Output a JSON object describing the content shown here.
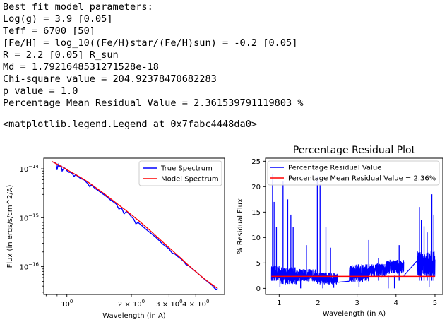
{
  "output": {
    "lines": [
      "Best fit model parameters:",
      "Log(g) = 3.9 [0.05]",
      "Teff = 6700 [50]",
      "[Fe/H] = log_10((Fe/H)star/(Fe/H)sun) = -0.2 [0.05]",
      "R = 2.2 [0.05] R_sun",
      "Md = 1.7921648531271528e-18",
      "Chi-square value = 204.92378470682283",
      "p value = 1.0",
      "Percentage Mean Residual Value = 2.361539791119803 %"
    ],
    "repr": "<matplotlib.legend.Legend at 0x7fabc4448da0>"
  },
  "chart_data": [
    {
      "type": "line",
      "title": "",
      "xlabel": "Wavelength (in A)",
      "ylabel": "Flux (in ergs/s/cm^2/A)",
      "xscale": "log",
      "yscale": "log",
      "xlim": [
        0.78,
        5.45
      ],
      "ylim": [
        2.7e-17,
        1.65e-14
      ],
      "xticks": [
        {
          "value": 1,
          "base": "10",
          "exp": "0"
        },
        {
          "value": 2,
          "base": "2 × 10",
          "exp": "0"
        },
        {
          "value": 3,
          "base": "3 × 10",
          "exp": "0"
        },
        {
          "value": 4,
          "base": "4 × 10",
          "exp": "0"
        }
      ],
      "yticks": [
        {
          "value": 1e-14,
          "base": "10",
          "exp": "−14"
        },
        {
          "value": 1e-15,
          "base": "10",
          "exp": "−15"
        },
        {
          "value": 1e-16,
          "base": "10",
          "exp": "−16"
        }
      ],
      "grid": false,
      "legend_position": "top-right",
      "series": [
        {
          "name": "True Spectrum",
          "color": "#0000ff",
          "x": [
            0.85,
            0.87,
            0.89,
            0.9,
            0.91,
            0.92,
            0.94,
            0.95,
            0.97,
            0.99,
            1.0,
            1.02,
            1.05,
            1.08,
            1.1,
            1.13,
            1.16,
            1.2,
            1.25,
            1.28,
            1.3,
            1.35,
            1.4,
            1.45,
            1.5,
            1.55,
            1.6,
            1.65,
            1.7,
            1.75,
            1.8,
            1.85,
            1.9,
            1.95,
            2.0,
            2.05,
            2.1,
            2.15,
            2.2,
            2.3,
            2.4,
            2.5,
            2.6,
            2.7,
            2.8,
            2.9,
            3.0,
            3.1,
            3.2,
            3.3,
            3.4,
            3.5,
            3.6,
            3.7,
            3.8,
            3.9,
            4.0,
            4.1,
            4.2,
            4.3,
            4.4,
            4.5,
            4.6,
            4.7,
            4.8,
            4.9,
            5.0,
            5.05
          ],
          "y": [
            1.4e-14,
            1.35e-14,
            1.3e-14,
            9.5e-15,
            1.22e-14,
            1.1e-14,
            1.15e-14,
            9e-15,
            1.05e-14,
            1e-14,
            9.2e-15,
            8.5e-15,
            8.4e-15,
            7e-15,
            7.6e-15,
            6.9e-15,
            6.3e-15,
            6e-15,
            5e-15,
            4.3e-15,
            4.7e-15,
            4e-15,
            3.6e-15,
            3.2e-15,
            2.9e-15,
            2.6e-15,
            2.3e-15,
            2.1e-15,
            1.9e-15,
            1.5e-15,
            1.6e-15,
            1.2e-15,
            1.35e-15,
            1.2e-15,
            1.05e-15,
            9.5e-16,
            7.5e-16,
            8e-16,
            7.4e-16,
            6.2e-16,
            5.3e-16,
            4.6e-16,
            4e-16,
            3.4e-16,
            2.9e-16,
            2.6e-16,
            2.3e-16,
            1.9e-16,
            1.8e-16,
            1.6e-16,
            1.45e-16,
            1.3e-16,
            1.1e-16,
            1.05e-16,
            9.5e-17,
            8.7e-17,
            7.9e-17,
            7.2e-17,
            6.6e-17,
            6e-17,
            5.5e-17,
            5.1e-17,
            4.7e-17,
            4.4e-17,
            4e-17,
            3.6e-17,
            3.4e-17,
            3.6e-17
          ]
        },
        {
          "name": "Model Spectrum",
          "color": "#ff0000",
          "x": [
            0.85,
            0.9,
            0.95,
            1.0,
            1.1,
            1.2,
            1.3,
            1.4,
            1.5,
            1.6,
            1.7,
            1.8,
            1.9,
            2.0,
            2.2,
            2.4,
            2.6,
            2.8,
            3.0,
            3.2,
            3.4,
            3.6,
            3.8,
            4.0,
            4.2,
            4.4,
            4.6,
            4.8,
            5.0,
            5.05
          ],
          "y": [
            1.42e-14,
            1.25e-14,
            1.1e-14,
            9.6e-15,
            7.6e-15,
            6.1e-15,
            4.8e-15,
            3.8e-15,
            3.05e-15,
            2.45e-15,
            2e-15,
            1.65e-15,
            1.38e-15,
            1.15e-15,
            8.2e-16,
            5.9e-16,
            4.3e-16,
            3.2e-16,
            2.45e-16,
            1.9e-16,
            1.5e-16,
            1.18e-16,
            9.6e-17,
            7.9e-17,
            6.6e-17,
            5.6e-17,
            4.8e-17,
            4.2e-17,
            3.7e-17,
            3.6e-17
          ]
        }
      ]
    },
    {
      "type": "line",
      "title": "Percentage Residual Plot",
      "xlabel": "Wavelength (in A)",
      "ylabel": "% Residual Flux",
      "xlim": [
        0.65,
        5.2
      ],
      "ylim": [
        -1.2,
        25.6
      ],
      "xticks": [
        1,
        2,
        3,
        4,
        5
      ],
      "yticks": [
        0,
        5,
        10,
        15,
        20,
        25
      ],
      "grid": false,
      "legend_position": "top-left",
      "series": [
        {
          "name": "Percentage Residual Value",
          "color": "#0000ff",
          "segments": [
            {
              "xmin": 0.8,
              "xmax": 1.05,
              "base": 2.5,
              "amp": 3.0
            },
            {
              "xmin": 1.05,
              "xmax": 1.45,
              "base": 2.0,
              "amp": 3.5
            },
            {
              "xmin": 1.45,
              "xmax": 1.95,
              "base": 2.2,
              "amp": 2.5
            },
            {
              "xmin": 1.95,
              "xmax": 2.5,
              "base": 1.6,
              "amp": 2.4
            },
            {
              "xmin": 2.8,
              "xmax": 3.3,
              "base": 2.5,
              "amp": 3.5
            },
            {
              "xmin": 3.3,
              "xmax": 3.75,
              "base": 3.2,
              "amp": 2.5
            },
            {
              "xmin": 3.75,
              "xmax": 4.2,
              "base": 3.8,
              "amp": 2.8
            },
            {
              "xmin": 4.55,
              "xmax": 5.0,
              "base": 4.0,
              "amp": 5.0
            }
          ],
          "spikes": [
            {
              "x": 0.83,
              "y": 22.5
            },
            {
              "x": 0.87,
              "y": 17.0
            },
            {
              "x": 0.93,
              "y": 12.0
            },
            {
              "x": 1.1,
              "y": 21.0
            },
            {
              "x": 1.22,
              "y": 17.5
            },
            {
              "x": 1.3,
              "y": 14.5
            },
            {
              "x": 1.36,
              "y": 12.0
            },
            {
              "x": 1.7,
              "y": 8.5
            },
            {
              "x": 1.98,
              "y": 22.0
            },
            {
              "x": 2.05,
              "y": 20.5
            },
            {
              "x": 2.2,
              "y": 12.0
            },
            {
              "x": 2.32,
              "y": 8.0
            },
            {
              "x": 3.3,
              "y": 9.5
            },
            {
              "x": 3.55,
              "y": 6.0
            },
            {
              "x": 4.08,
              "y": 8.5
            },
            {
              "x": 4.6,
              "y": 16.0
            },
            {
              "x": 4.65,
              "y": 13.5
            },
            {
              "x": 4.72,
              "y": 12.2
            },
            {
              "x": 4.8,
              "y": 11.0
            },
            {
              "x": 4.92,
              "y": 18.5
            },
            {
              "x": 4.97,
              "y": 14.5
            }
          ],
          "dips": [
            {
              "x": 1.02,
              "y": 0.2
            },
            {
              "x": 1.55,
              "y": 0.0
            },
            {
              "x": 2.12,
              "y": 0.0
            },
            {
              "x": 2.4,
              "y": 0.1
            },
            {
              "x": 3.05,
              "y": 0.2
            },
            {
              "x": 3.8,
              "y": 0.0
            },
            {
              "x": 3.96,
              "y": 0.0
            },
            {
              "x": 4.85,
              "y": 0.3
            }
          ],
          "connectors": [
            [
              {
                "x": 2.5,
                "y": 1.2
              },
              {
                "x": 2.8,
                "y": 1.4
              }
            ],
            [
              {
                "x": 4.2,
                "y": 2.5
              },
              {
                "x": 4.55,
                "y": 5.5
              }
            ]
          ]
        },
        {
          "name": "Percentage Mean Residual Value = 2.36%",
          "color": "#ff0000",
          "x": [
            0.8,
            5.0
          ],
          "y": [
            2.36,
            2.36
          ]
        }
      ]
    }
  ]
}
